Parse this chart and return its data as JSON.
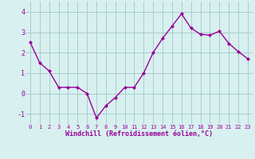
{
  "x": [
    0,
    1,
    2,
    3,
    4,
    5,
    6,
    7,
    8,
    9,
    10,
    11,
    12,
    13,
    14,
    15,
    16,
    17,
    18,
    19,
    20,
    21,
    22,
    23
  ],
  "y": [
    2.5,
    1.5,
    1.1,
    0.3,
    0.3,
    0.3,
    0.0,
    -1.2,
    -0.6,
    -0.2,
    0.3,
    0.3,
    1.0,
    2.0,
    2.7,
    3.3,
    3.9,
    3.2,
    2.9,
    2.85,
    3.05,
    2.45,
    2.05,
    1.7
  ],
  "line_color": "#990099",
  "marker": "D",
  "marker_size": 2.0,
  "bg_color": "#d8f0f0",
  "grid_color": "#aacccc",
  "xlabel": "Windchill (Refroidissement éolien,°C)",
  "xlabel_color": "#990099",
  "tick_color": "#990099",
  "xlim": [
    -0.5,
    23.5
  ],
  "ylim": [
    -1.5,
    4.5
  ],
  "yticks": [
    -1,
    0,
    1,
    2,
    3,
    4
  ],
  "xticks": [
    0,
    1,
    2,
    3,
    4,
    5,
    6,
    7,
    8,
    9,
    10,
    11,
    12,
    13,
    14,
    15,
    16,
    17,
    18,
    19,
    20,
    21,
    22,
    23
  ],
  "xtick_labels": [
    "0",
    "1",
    "2",
    "3",
    "4",
    "5",
    "6",
    "7",
    "8",
    "9",
    "10",
    "11",
    "12",
    "13",
    "14",
    "15",
    "16",
    "17",
    "18",
    "19",
    "20",
    "21",
    "22",
    "23"
  ],
  "linewidth": 1.0,
  "xlabel_fontsize": 6.0,
  "xtick_fontsize": 5.0,
  "ytick_fontsize": 6.0
}
